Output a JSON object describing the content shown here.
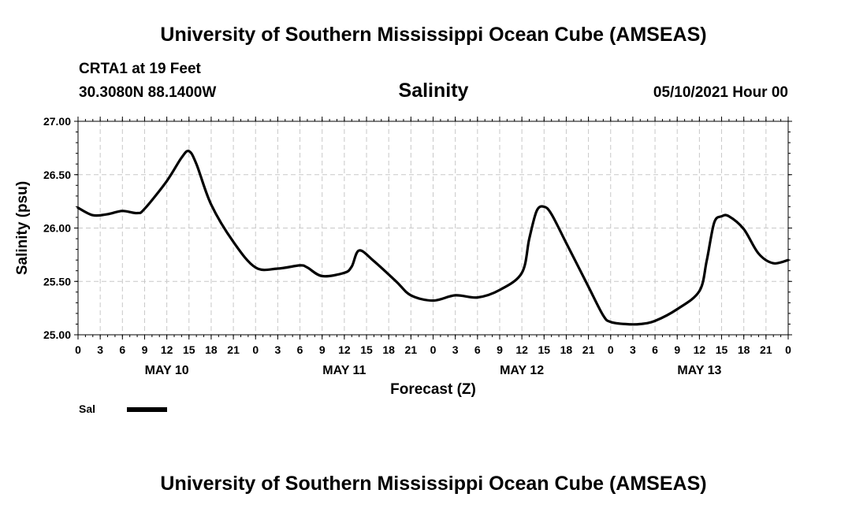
{
  "header": {
    "title": "University of Southern Mississippi Ocean Cube (AMSEAS)",
    "station": "CRTA1 at 19 Feet",
    "coords": "30.3080N  88.1400W",
    "variable": "Salinity",
    "datetime": "05/10/2021 Hour 00"
  },
  "footer": {
    "title": "University of Southern Mississippi Ocean Cube (AMSEAS)"
  },
  "chart_data": {
    "type": "line",
    "title": "Salinity",
    "xlabel": "Forecast (Z)",
    "ylabel": "Salinity (psu)",
    "x_unit": "forecast hour",
    "xlim": [
      0,
      96
    ],
    "ylim": [
      25.0,
      27.0
    ],
    "grid": true,
    "legend_position": "bottom-left",
    "y_ticks": [
      "25.00",
      "25.50",
      "26.00",
      "26.50",
      "27.00"
    ],
    "y_tick_values": [
      25.0,
      25.5,
      26.0,
      26.5,
      27.0
    ],
    "x_ticks": [
      "0",
      "3",
      "6",
      "9",
      "12",
      "15",
      "18",
      "21",
      "0",
      "3",
      "6",
      "9",
      "12",
      "15",
      "18",
      "21",
      "0",
      "3",
      "6",
      "9",
      "12",
      "15",
      "18",
      "21",
      "0",
      "3",
      "6",
      "9",
      "12",
      "15",
      "18",
      "21",
      "0"
    ],
    "x_tick_step": 3,
    "day_labels": [
      {
        "label": "MAY 10",
        "hour": 12
      },
      {
        "label": "MAY 11",
        "hour": 36
      },
      {
        "label": "MAY 12",
        "hour": 60
      },
      {
        "label": "MAY 13",
        "hour": 84
      }
    ],
    "series": [
      {
        "name": "Sal",
        "color": "#000000",
        "x": [
          0,
          2,
          4,
          6,
          8,
          9,
          12,
          14,
          15,
          16,
          18,
          21,
          24,
          27,
          30,
          31,
          33,
          36,
          37,
          38,
          40,
          43,
          45,
          48,
          51,
          54,
          57,
          60,
          61,
          62,
          63,
          64,
          66,
          69,
          71,
          72,
          74,
          76,
          78,
          81,
          84,
          85,
          86,
          87,
          88,
          90,
          92,
          94,
          96
        ],
        "values": [
          26.19,
          26.12,
          26.13,
          26.16,
          26.14,
          26.18,
          26.44,
          26.66,
          26.72,
          26.6,
          26.22,
          25.87,
          25.63,
          25.62,
          25.65,
          25.63,
          25.55,
          25.58,
          25.64,
          25.79,
          25.69,
          25.5,
          25.37,
          25.32,
          25.37,
          25.35,
          25.42,
          25.58,
          25.9,
          26.16,
          26.2,
          26.13,
          25.86,
          25.45,
          25.18,
          25.12,
          25.1,
          25.1,
          25.13,
          25.24,
          25.41,
          25.7,
          26.05,
          26.11,
          26.11,
          25.99,
          25.76,
          25.67,
          25.7
        ]
      }
    ]
  }
}
